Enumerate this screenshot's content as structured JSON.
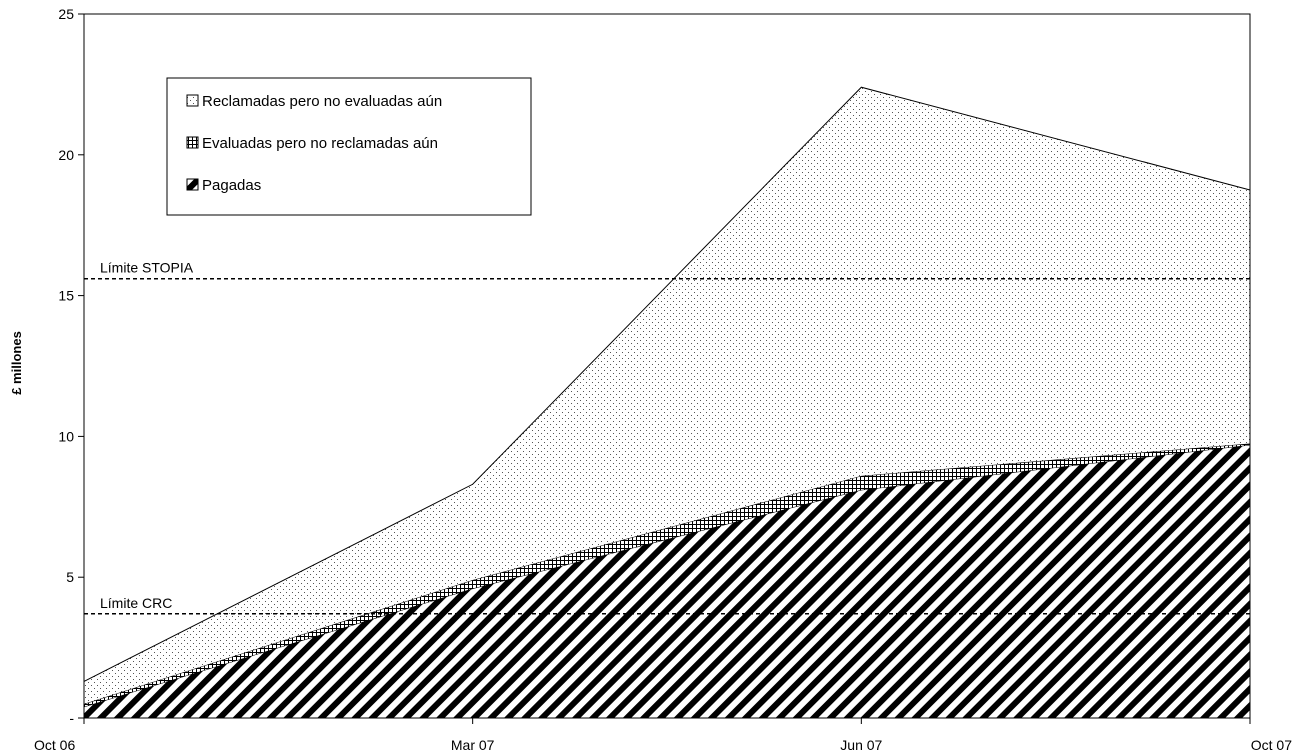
{
  "chart_data": {
    "type": "area",
    "stacked": true,
    "title": "",
    "xlabel": "",
    "ylabel": "£ millones",
    "ylim": [
      0,
      25
    ],
    "y_ticks": [
      {
        "value": 0,
        "label": "-"
      },
      {
        "value": 5,
        "label": "5"
      },
      {
        "value": 10,
        "label": "10"
      },
      {
        "value": 15,
        "label": "15"
      },
      {
        "value": 20,
        "label": "20"
      },
      {
        "value": 25,
        "label": "25"
      }
    ],
    "x": [
      "Oct 06",
      "Mar 07",
      "Jun 07",
      "Oct 07"
    ],
    "series": [
      {
        "name": "Pagadas",
        "pattern": "diagonal-hatch",
        "values": [
          0.4,
          4.6,
          8.1,
          9.7
        ]
      },
      {
        "name": "Evaluadas pero no reclamadas aún",
        "pattern": "crosshatch",
        "values": [
          0.1,
          0.3,
          0.5,
          0.05
        ]
      },
      {
        "name": "Reclamadas pero no evaluadas aún",
        "pattern": "dots",
        "values": [
          0.8,
          3.4,
          13.8,
          9.0
        ]
      }
    ],
    "legend_order": [
      "Reclamadas pero no evaluadas aún",
      "Evaluadas pero no reclamadas aún",
      "Pagadas"
    ],
    "legend_position": "top-left",
    "reference_lines": [
      {
        "label": "Límite STOPIA",
        "value": 15.6
      },
      {
        "label": "Límite CRC",
        "value": 3.7
      }
    ],
    "grid": false
  }
}
